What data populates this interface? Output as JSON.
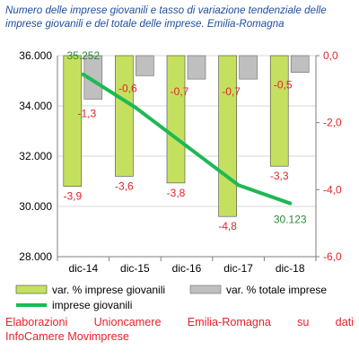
{
  "title": "Numero delle imprese giovanili e tasso di variazione tendenziale delle imprese giovanili e del totale delle imprese. Emilia-Romagna",
  "source_line1": "Elaborazioni Unioncamere Emilia-Romagna su dati",
  "source_line2": "InfoCamere Movimprese",
  "colors": {
    "bar_giovanili": "#c5e05f",
    "bar_totale": "#bfbfbf",
    "line_giovanili": "#1db954",
    "negative_labels": "#e4232a",
    "line_labels": "#2a8a3a"
  },
  "chart_data": {
    "type": "bar+line",
    "categories": [
      "dic-14",
      "dic-15",
      "dic-16",
      "dic-17",
      "dic-18"
    ],
    "y_left": {
      "min": 28000,
      "max": 36000,
      "ticks": [
        "28.000",
        "30.000",
        "32.000",
        "34.000",
        "36.000"
      ],
      "tick_values": [
        28000,
        30000,
        32000,
        34000,
        36000
      ]
    },
    "y_right": {
      "min": -6.0,
      "max": 0.0,
      "ticks": [
        "0,0",
        "-2,0",
        "-4,0",
        "-6,0"
      ],
      "tick_values": [
        0,
        -2,
        -4,
        -6
      ]
    },
    "series": [
      {
        "name": "var. % imprese giovanili",
        "type": "bar",
        "axis": "right",
        "values": [
          -3.9,
          -3.6,
          -3.8,
          -4.8,
          -3.3
        ],
        "labels": [
          "-3,9",
          "-3,6",
          "-3,8",
          "-4,8",
          "-3,3"
        ]
      },
      {
        "name": "var. % totale imprese",
        "type": "bar",
        "axis": "right",
        "values": [
          -1.3,
          -0.6,
          -0.7,
          -0.7,
          -0.5
        ],
        "labels": [
          "-1,3",
          "-0,6",
          "-0,7",
          "-0,7",
          "-0,5"
        ]
      },
      {
        "name": "imprese giovanili",
        "type": "line",
        "axis": "left",
        "values": [
          35252,
          33950,
          32400,
          30850,
          30123
        ],
        "labels": [
          "35.252",
          "",
          "",
          "",
          "30.123"
        ]
      }
    ],
    "legend_position": "bottom"
  }
}
